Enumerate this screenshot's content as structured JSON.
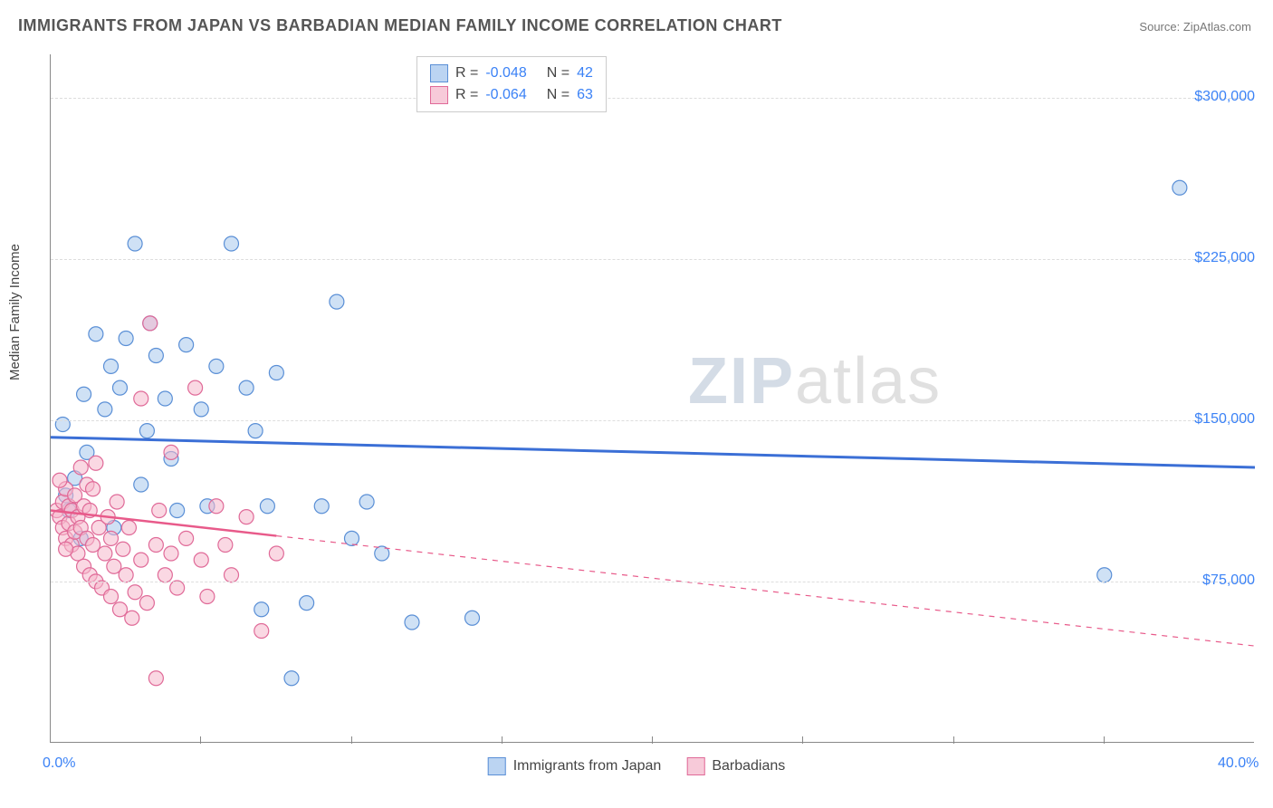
{
  "title": "IMMIGRANTS FROM JAPAN VS BARBADIAN MEDIAN FAMILY INCOME CORRELATION CHART",
  "source_label": "Source:",
  "source_name": "ZipAtlas.com",
  "ylabel": "Median Family Income",
  "watermark_bold": "ZIP",
  "watermark_light": "atlas",
  "chart": {
    "type": "scatter-with-regression",
    "background_color": "#ffffff",
    "grid_color": "#dddddd",
    "axis_color": "#888888",
    "tick_label_color": "#3b82f6",
    "xlim": [
      0,
      40
    ],
    "ylim": [
      0,
      320000
    ],
    "x_tick_labels": {
      "0": "0.0%",
      "40": "40.0%"
    },
    "x_minor_ticks": [
      5,
      10,
      15,
      20,
      25,
      30,
      35
    ],
    "y_ticks": [
      75000,
      150000,
      225000,
      300000
    ],
    "y_tick_labels": [
      "$75,000",
      "$150,000",
      "$225,000",
      "$300,000"
    ],
    "marker_radius": 8,
    "marker_opacity": 0.55,
    "series": [
      {
        "name": "Immigrants from Japan",
        "color_fill": "#a8c8ec",
        "color_stroke": "#5a8fd6",
        "R": -0.048,
        "N": 42,
        "regression": {
          "y_at_x0": 142000,
          "y_at_x40": 128000,
          "line_color": "#3b6fd6",
          "line_width": 3,
          "dashed": false
        },
        "points": [
          [
            0.5,
            115000
          ],
          [
            0.6,
            108000
          ],
          [
            0.8,
            123000
          ],
          [
            1.0,
            95000
          ],
          [
            1.2,
            135000
          ],
          [
            1.5,
            190000
          ],
          [
            1.8,
            155000
          ],
          [
            2.0,
            175000
          ],
          [
            2.3,
            165000
          ],
          [
            2.5,
            188000
          ],
          [
            2.8,
            232000
          ],
          [
            3.0,
            120000
          ],
          [
            3.2,
            145000
          ],
          [
            3.5,
            180000
          ],
          [
            3.8,
            160000
          ],
          [
            4.0,
            132000
          ],
          [
            4.5,
            185000
          ],
          [
            5.0,
            155000
          ],
          [
            5.2,
            110000
          ],
          [
            5.5,
            175000
          ],
          [
            6.0,
            232000
          ],
          [
            6.5,
            165000
          ],
          [
            7.0,
            62000
          ],
          [
            7.2,
            110000
          ],
          [
            7.5,
            172000
          ],
          [
            8.0,
            30000
          ],
          [
            8.5,
            65000
          ],
          [
            9.0,
            110000
          ],
          [
            9.5,
            205000
          ],
          [
            10.0,
            95000
          ],
          [
            10.5,
            112000
          ],
          [
            11.0,
            88000
          ],
          [
            12.0,
            56000
          ],
          [
            14.0,
            58000
          ],
          [
            35.0,
            78000
          ],
          [
            37.5,
            258000
          ],
          [
            0.4,
            148000
          ],
          [
            1.1,
            162000
          ],
          [
            2.1,
            100000
          ],
          [
            3.3,
            195000
          ],
          [
            4.2,
            108000
          ],
          [
            6.8,
            145000
          ]
        ]
      },
      {
        "name": "Barbadians",
        "color_fill": "#f5b8cc",
        "color_stroke": "#e06a98",
        "R": -0.064,
        "N": 63,
        "regression": {
          "y_at_x0": 108000,
          "y_at_x40": 45000,
          "line_color": "#e85a8a",
          "line_width": 2.5,
          "dashed_after_x": 7.5
        },
        "points": [
          [
            0.2,
            108000
          ],
          [
            0.3,
            105000
          ],
          [
            0.4,
            112000
          ],
          [
            0.4,
            100000
          ],
          [
            0.5,
            118000
          ],
          [
            0.5,
            95000
          ],
          [
            0.6,
            110000
          ],
          [
            0.6,
            102000
          ],
          [
            0.7,
            108000
          ],
          [
            0.7,
            92000
          ],
          [
            0.8,
            115000
          ],
          [
            0.8,
            98000
          ],
          [
            0.9,
            105000
          ],
          [
            0.9,
            88000
          ],
          [
            1.0,
            128000
          ],
          [
            1.0,
            100000
          ],
          [
            1.1,
            110000
          ],
          [
            1.1,
            82000
          ],
          [
            1.2,
            95000
          ],
          [
            1.2,
            120000
          ],
          [
            1.3,
            78000
          ],
          [
            1.3,
            108000
          ],
          [
            1.4,
            92000
          ],
          [
            1.5,
            130000
          ],
          [
            1.5,
            75000
          ],
          [
            1.6,
            100000
          ],
          [
            1.7,
            72000
          ],
          [
            1.8,
            88000
          ],
          [
            1.9,
            105000
          ],
          [
            2.0,
            68000
          ],
          [
            2.0,
            95000
          ],
          [
            2.1,
            82000
          ],
          [
            2.2,
            112000
          ],
          [
            2.3,
            62000
          ],
          [
            2.4,
            90000
          ],
          [
            2.5,
            78000
          ],
          [
            2.6,
            100000
          ],
          [
            2.8,
            70000
          ],
          [
            3.0,
            85000
          ],
          [
            3.0,
            160000
          ],
          [
            3.2,
            65000
          ],
          [
            3.3,
            195000
          ],
          [
            3.5,
            92000
          ],
          [
            3.5,
            30000
          ],
          [
            3.8,
            78000
          ],
          [
            4.0,
            135000
          ],
          [
            4.0,
            88000
          ],
          [
            4.2,
            72000
          ],
          [
            4.5,
            95000
          ],
          [
            4.8,
            165000
          ],
          [
            5.0,
            85000
          ],
          [
            5.2,
            68000
          ],
          [
            5.5,
            110000
          ],
          [
            5.8,
            92000
          ],
          [
            6.0,
            78000
          ],
          [
            6.5,
            105000
          ],
          [
            7.0,
            52000
          ],
          [
            7.5,
            88000
          ],
          [
            0.3,
            122000
          ],
          [
            0.5,
            90000
          ],
          [
            1.4,
            118000
          ],
          [
            2.7,
            58000
          ],
          [
            3.6,
            108000
          ]
        ]
      }
    ]
  },
  "legend_bottom": [
    {
      "swatch": "blue",
      "label": "Immigrants from Japan"
    },
    {
      "swatch": "pink",
      "label": "Barbadians"
    }
  ]
}
